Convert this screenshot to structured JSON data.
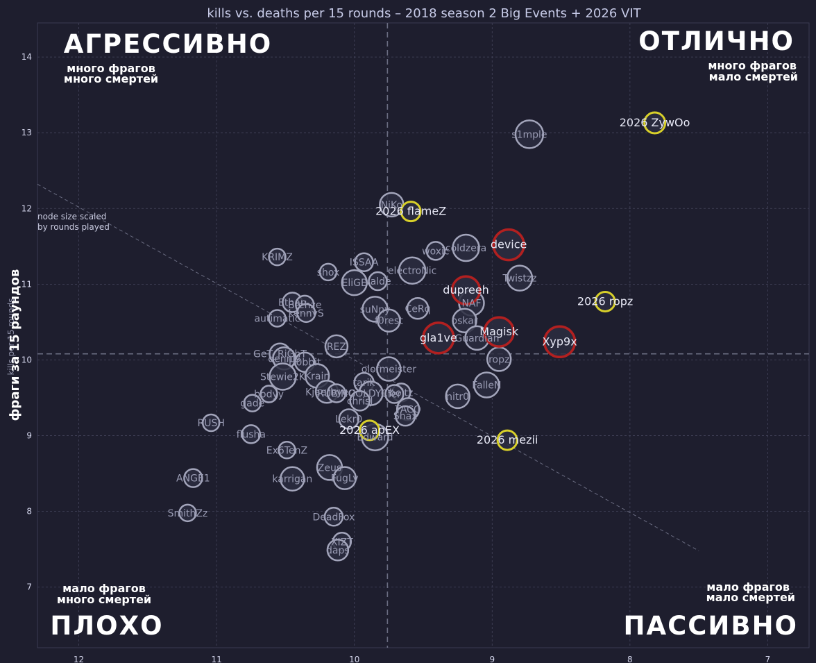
{
  "chart_data": {
    "type": "scatter",
    "title": "kills vs. deaths per 15 rounds – 2018 season 2 Big Events + 2026 VIT",
    "xlabel": "",
    "ylabel": "фраги за 15 раундов",
    "ylabel_under": "kills per 15 rounds",
    "x_axis_reversed": true,
    "xlim": [
      12.3,
      6.7
    ],
    "ylim": [
      6.2,
      14.45
    ],
    "x_ticks": [
      "12",
      "11",
      "10",
      "9",
      "8",
      "7"
    ],
    "y_ticks": [
      "7",
      "8",
      "9",
      "10",
      "11",
      "12",
      "13",
      "14"
    ],
    "grid": true,
    "mean_lines": {
      "x": 9.76,
      "y": 10.08
    },
    "trend_line": {
      "from": [
        12.3,
        12.32
      ],
      "to": [
        7.5,
        7.48
      ]
    },
    "note": [
      "node size scaled",
      "by rounds played"
    ],
    "quadrants": {
      "top_left": {
        "title": "АГРЕССИВНО",
        "line1": "много фрагов",
        "line2": "много смертей"
      },
      "top_right": {
        "title": "ОТЛИЧНО",
        "line1": "много фрагов",
        "line2": "мало смертей"
      },
      "bottom_left": {
        "title": "ПЛОХО",
        "line1": "мало фрагов",
        "line2": "много смертей"
      },
      "bottom_right": {
        "title": "ПАССИВНО",
        "line1": "мало фрагов",
        "line2": "мало смертей"
      }
    },
    "colors": {
      "background": "#1e1e2e",
      "node_fill": "#2c2d40",
      "node_stroke": "#a3a5bb",
      "highlight_red": "#b22020",
      "highlight_yellow": "#d8d02a",
      "label": "#9a9cb4",
      "label_highlight": "#e8e9f6"
    },
    "points": [
      {
        "name": "s1mple",
        "x": 8.73,
        "y": 12.98,
        "r": 20,
        "group": "base"
      },
      {
        "name": "2026 ZywOo",
        "x": 7.82,
        "y": 13.13,
        "r": 15,
        "group": "vit"
      },
      {
        "name": "NiKo",
        "x": 9.73,
        "y": 12.05,
        "r": 17,
        "group": "base"
      },
      {
        "name": "2026 flameZ",
        "x": 9.59,
        "y": 11.96,
        "r": 14,
        "group": "vit"
      },
      {
        "name": "woxic",
        "x": 9.41,
        "y": 11.44,
        "r": 13,
        "group": "base"
      },
      {
        "name": "coldzera",
        "x": 9.19,
        "y": 11.48,
        "r": 19,
        "group": "base"
      },
      {
        "name": "device",
        "x": 8.88,
        "y": 11.52,
        "r": 22,
        "group": "red"
      },
      {
        "name": "KRIMZ",
        "x": 10.56,
        "y": 11.36,
        "r": 12,
        "group": "base"
      },
      {
        "name": "ISSAA",
        "x": 9.93,
        "y": 11.29,
        "r": 13,
        "group": "base"
      },
      {
        "name": "shox",
        "x": 10.19,
        "y": 11.16,
        "r": 12,
        "group": "base"
      },
      {
        "name": "electroNic",
        "x": 9.58,
        "y": 11.18,
        "r": 19,
        "group": "base"
      },
      {
        "name": "Twistzz",
        "x": 8.8,
        "y": 11.08,
        "r": 18,
        "group": "base"
      },
      {
        "name": "valde",
        "x": 9.83,
        "y": 11.04,
        "r": 13,
        "group": "base"
      },
      {
        "name": "EliGE",
        "x": 10.0,
        "y": 11.02,
        "r": 18,
        "group": "base"
      },
      {
        "name": "dupreeh",
        "x": 9.19,
        "y": 10.92,
        "r": 20,
        "group": "red"
      },
      {
        "name": "2026 ropz",
        "x": 8.18,
        "y": 10.77,
        "r": 14,
        "group": "vit"
      },
      {
        "name": "NAF",
        "x": 9.15,
        "y": 10.75,
        "r": 18,
        "group": "base"
      },
      {
        "name": "Ethan",
        "x": 10.45,
        "y": 10.76,
        "r": 14,
        "group": "base"
      },
      {
        "name": "Brehze",
        "x": 10.36,
        "y": 10.73,
        "r": 13,
        "group": "base"
      },
      {
        "name": "CeRq",
        "x": 9.54,
        "y": 10.68,
        "r": 15,
        "group": "base"
      },
      {
        "name": "suNny",
        "x": 9.85,
        "y": 10.67,
        "r": 18,
        "group": "base"
      },
      {
        "name": "kennyS",
        "x": 10.35,
        "y": 10.62,
        "r": 13,
        "group": "base"
      },
      {
        "name": "autimatic",
        "x": 10.56,
        "y": 10.55,
        "r": 12,
        "group": "base"
      },
      {
        "name": "f0rest",
        "x": 9.75,
        "y": 10.52,
        "r": 16,
        "group": "base"
      },
      {
        "name": "oskar",
        "x": 9.2,
        "y": 10.52,
        "r": 17,
        "group": "base"
      },
      {
        "name": "Magisk",
        "x": 8.95,
        "y": 10.37,
        "r": 21,
        "group": "red"
      },
      {
        "name": "gla1ve",
        "x": 9.39,
        "y": 10.29,
        "r": 22,
        "group": "red"
      },
      {
        "name": "Guardian",
        "x": 9.11,
        "y": 10.29,
        "r": 17,
        "group": "base"
      },
      {
        "name": "Xyp9x",
        "x": 8.51,
        "y": 10.24,
        "r": 22,
        "group": "red"
      },
      {
        "name": "REZ",
        "x": 10.13,
        "y": 10.18,
        "r": 16,
        "group": "base"
      },
      {
        "name": "GeT_RiGhT",
        "x": 10.54,
        "y": 10.08,
        "r": 15,
        "group": "base"
      },
      {
        "name": "dennis",
        "x": 10.51,
        "y": 10.02,
        "r": 16,
        "group": "base"
      },
      {
        "name": "ropz",
        "x": 8.95,
        "y": 10.01,
        "r": 17,
        "group": "base"
      },
      {
        "name": "H0bbit",
        "x": 10.36,
        "y": 9.97,
        "r": 14,
        "group": "base"
      },
      {
        "name": "olofmeister",
        "x": 9.75,
        "y": 9.88,
        "r": 17,
        "group": "base"
      },
      {
        "name": "Stewie2K",
        "x": 10.52,
        "y": 9.78,
        "r": 19,
        "group": "base"
      },
      {
        "name": "Krain",
        "x": 10.27,
        "y": 9.79,
        "r": 17,
        "group": "base"
      },
      {
        "name": "tarik",
        "x": 9.93,
        "y": 9.7,
        "r": 14,
        "group": "base"
      },
      {
        "name": "FalleN",
        "x": 9.04,
        "y": 9.67,
        "r": 18,
        "group": "base"
      },
      {
        "name": "Kjaerbye",
        "x": 10.2,
        "y": 9.58,
        "r": 16,
        "group": "base"
      },
      {
        "name": "RUBINO",
        "x": 10.13,
        "y": 9.56,
        "r": 13,
        "group": "base"
      },
      {
        "name": "COLDYCY",
        "x": 9.88,
        "y": 9.56,
        "r": 17,
        "group": "base"
      },
      {
        "name": "boltz",
        "x": 9.66,
        "y": 9.57,
        "r": 13,
        "group": "base"
      },
      {
        "name": "fer",
        "x": 9.71,
        "y": 9.55,
        "r": 13,
        "group": "base"
      },
      {
        "name": "bodyy",
        "x": 10.62,
        "y": 9.55,
        "r": 12,
        "group": "base"
      },
      {
        "name": "nitr0",
        "x": 9.25,
        "y": 9.52,
        "r": 17,
        "group": "base"
      },
      {
        "name": "chrisJ",
        "x": 9.96,
        "y": 9.46,
        "r": 14,
        "group": "base"
      },
      {
        "name": "gade",
        "x": 10.74,
        "y": 9.43,
        "r": 12,
        "group": "base"
      },
      {
        "name": "TACO",
        "x": 9.61,
        "y": 9.35,
        "r": 16,
        "group": "base"
      },
      {
        "name": "Shax",
        "x": 9.63,
        "y": 9.26,
        "r": 14,
        "group": "base"
      },
      {
        "name": "RUSH",
        "x": 11.04,
        "y": 9.17,
        "r": 12,
        "group": "base"
      },
      {
        "name": "Lekr0",
        "x": 10.04,
        "y": 9.22,
        "r": 14,
        "group": "base"
      },
      {
        "name": "flusha",
        "x": 10.75,
        "y": 9.02,
        "r": 13,
        "group": "base"
      },
      {
        "name": "2026 apEX",
        "x": 9.89,
        "y": 9.07,
        "r": 14,
        "group": "vit"
      },
      {
        "name": "Edward",
        "x": 9.85,
        "y": 8.98,
        "r": 19,
        "group": "base"
      },
      {
        "name": "2026 mezii",
        "x": 8.89,
        "y": 8.94,
        "r": 14,
        "group": "vit"
      },
      {
        "name": "Ex6TenZ",
        "x": 10.49,
        "y": 8.81,
        "r": 12,
        "group": "base"
      },
      {
        "name": "Zeus",
        "x": 10.18,
        "y": 8.58,
        "r": 18,
        "group": "base"
      },
      {
        "name": "FugLy",
        "x": 10.07,
        "y": 8.44,
        "r": 16,
        "group": "base"
      },
      {
        "name": "karrigan",
        "x": 10.45,
        "y": 8.43,
        "r": 17,
        "group": "base"
      },
      {
        "name": "ANGE1",
        "x": 11.17,
        "y": 8.44,
        "r": 13,
        "group": "base"
      },
      {
        "name": "SmithZz",
        "x": 11.21,
        "y": 7.98,
        "r": 12,
        "group": "base"
      },
      {
        "name": "DeadFox",
        "x": 10.15,
        "y": 7.93,
        "r": 13,
        "group": "base"
      },
      {
        "name": "XIZT",
        "x": 10.09,
        "y": 7.6,
        "r": 13,
        "group": "base"
      },
      {
        "name": "daps",
        "x": 10.12,
        "y": 7.49,
        "r": 15,
        "group": "base"
      }
    ]
  }
}
